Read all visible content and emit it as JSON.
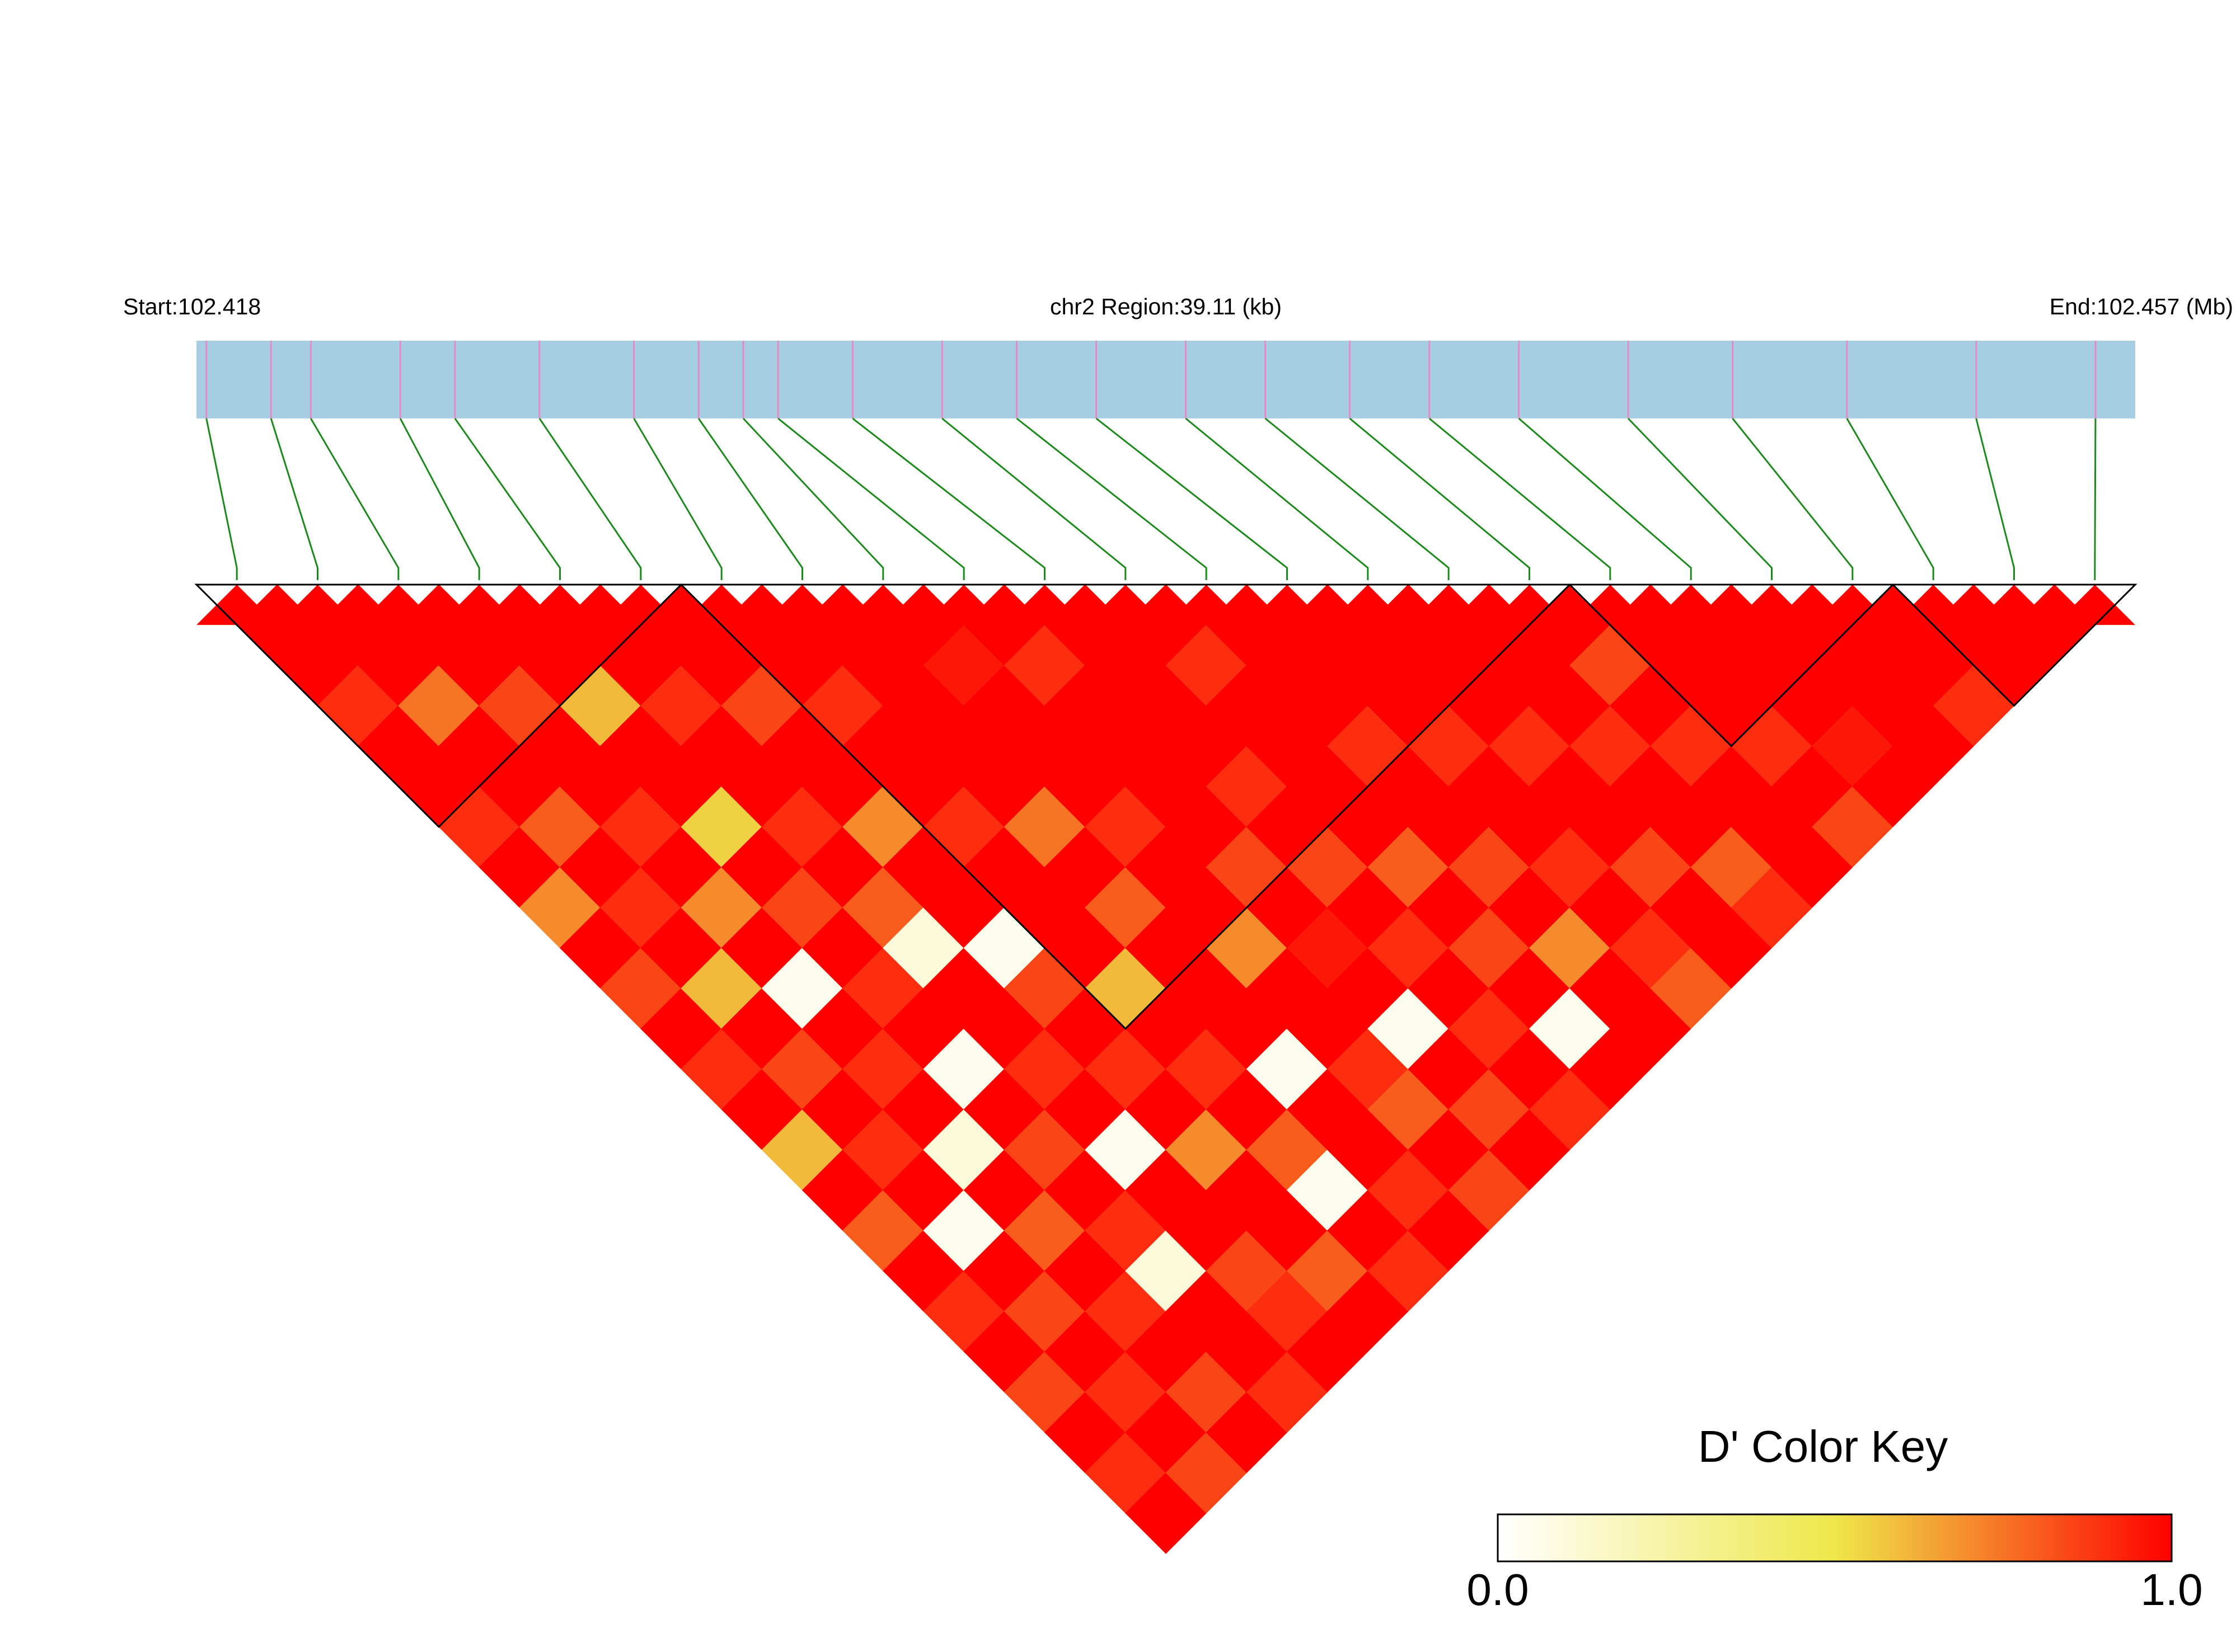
{
  "chart_data": {
    "type": "ld-heatmap",
    "left_label": "Start:102.418",
    "center_label": "chr2 Region:39.11 (kb)",
    "right_label": "End:102.457 (Mb)",
    "xlim": [
      102.418,
      102.457
    ],
    "positions": [
      102.4182,
      102.4195,
      102.4203,
      102.4221,
      102.4232,
      102.4249,
      102.4268,
      102.4281,
      102.429,
      102.4297,
      102.4312,
      102.433,
      102.4345,
      102.4361,
      102.4379,
      102.4395,
      102.4412,
      102.4428,
      102.4446,
      102.4468,
      102.4489,
      102.4512,
      102.4538,
      102.4562
    ],
    "values": [
      [
        1
      ],
      [
        1,
        1
      ],
      [
        0.9,
        1,
        1
      ],
      [
        1,
        0.75,
        1,
        1
      ],
      [
        1,
        1,
        0.85,
        1,
        1
      ],
      [
        0.9,
        1,
        1,
        0.6,
        1,
        1
      ],
      [
        1,
        0.8,
        1,
        1,
        0.9,
        1,
        1
      ],
      [
        0.7,
        1,
        0.9,
        1,
        1,
        0.85,
        1,
        1
      ],
      [
        1,
        0.9,
        1,
        0.55,
        1,
        1,
        0.9,
        1,
        1
      ],
      [
        0.85,
        1,
        0.7,
        1,
        0.9,
        1,
        1,
        1,
        0.95,
        1
      ],
      [
        1,
        0.6,
        1,
        0.85,
        1,
        0.7,
        1,
        1,
        1,
        0.9,
        1
      ],
      [
        0.9,
        1,
        0.05,
        1,
        0.8,
        1,
        0.9,
        1,
        1,
        1,
        1,
        1
      ],
      [
        1,
        0.85,
        1,
        0.9,
        0.1,
        1,
        1,
        0.75,
        1,
        1,
        1,
        0.9,
        1
      ],
      [
        0.6,
        1,
        0.9,
        1,
        1,
        0.05,
        1,
        1,
        0.9,
        1,
        1,
        1,
        1,
        1
      ],
      [
        1,
        0.9,
        1,
        0.05,
        1,
        0.85,
        1,
        0.8,
        1,
        1,
        0.9,
        1,
        1,
        1,
        1
      ],
      [
        0.8,
        1,
        0.1,
        1,
        0.9,
        1,
        0.6,
        1,
        1,
        0.85,
        1,
        1,
        0.9,
        1,
        1,
        1
      ],
      [
        1,
        0.05,
        1,
        0.85,
        1,
        0.9,
        1,
        1,
        0.7,
        1,
        0.85,
        1,
        1,
        0.9,
        1,
        1,
        1
      ],
      [
        0.9,
        1,
        0.8,
        1,
        0.05,
        1,
        0.9,
        1,
        1,
        0.95,
        1,
        0.8,
        1,
        1,
        0.9,
        1,
        0.85,
        1
      ],
      [
        1,
        0.85,
        1,
        0.9,
        1,
        0.7,
        1,
        0.05,
        1,
        1,
        0.9,
        1,
        0.85,
        1,
        1,
        0.9,
        1,
        1,
        1
      ],
      [
        0.85,
        1,
        0.9,
        0.1,
        1,
        1,
        0.8,
        1,
        0.9,
        0.05,
        1,
        0.85,
        1,
        0.9,
        1,
        1,
        0.9,
        1,
        1,
        1
      ],
      [
        1,
        0.9,
        1,
        1,
        0.85,
        1,
        0.05,
        1,
        0.8,
        1,
        0.9,
        1,
        0.7,
        1,
        0.85,
        1,
        1,
        0.9,
        1,
        1,
        1
      ],
      [
        0.9,
        1,
        0.85,
        1,
        0.9,
        0.8,
        1,
        0.9,
        1,
        0.85,
        1,
        0.05,
        1,
        0.9,
        1,
        0.8,
        1,
        1,
        0.95,
        1,
        1,
        1
      ],
      [
        1,
        0.85,
        1,
        0.9,
        1,
        1,
        0.9,
        1,
        0.85,
        1,
        0.9,
        1,
        1,
        0.8,
        1,
        0.9,
        1,
        0.85,
        1,
        1,
        0.9,
        1,
        1
      ]
    ],
    "blocks": [
      [
        0,
        5
      ],
      [
        6,
        16
      ],
      [
        17,
        20
      ],
      [
        21,
        23
      ]
    ],
    "track_color": "#a6cee3",
    "snp_color": "#e78ac3",
    "link_color": "#1a8a1a",
    "colors": [
      "#ffffff",
      "#eee84a",
      "#ff0000"
    ],
    "legend_title": "D' Color Key",
    "clim": [
      0,
      1
    ],
    "cticks": [
      {
        "value": 0,
        "label": "0.0"
      },
      {
        "value": 1,
        "label": "1.0"
      }
    ]
  }
}
